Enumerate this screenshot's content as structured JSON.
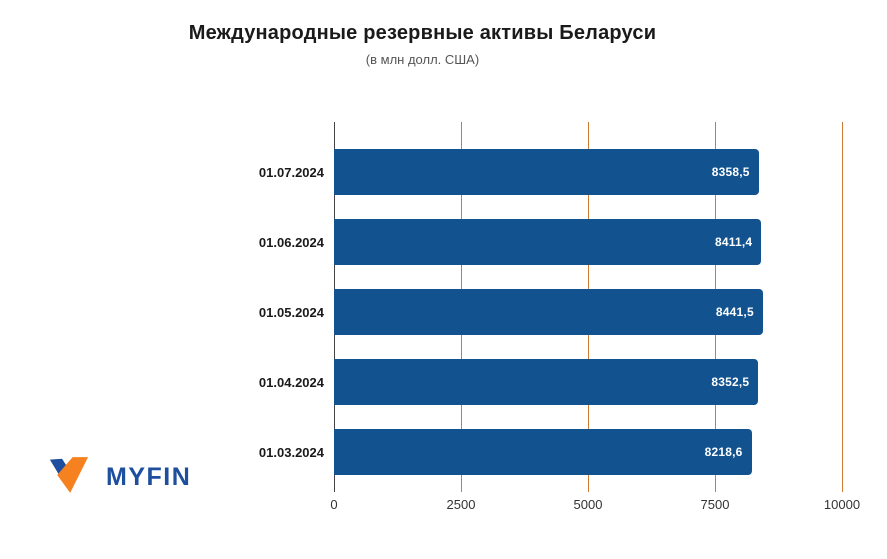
{
  "chart_data": {
    "type": "bar",
    "orientation": "horizontal",
    "title": "Международные резервные активы Беларуси",
    "subtitle": "(в млн долл. США)",
    "categories": [
      "01.07.2024",
      "01.06.2024",
      "01.05.2024",
      "01.04.2024",
      "01.03.2024"
    ],
    "values": [
      8358.5,
      8411.4,
      8441.5,
      8352.5,
      8218.6
    ],
    "value_labels": [
      "8358,5",
      "8411,4",
      "8441,5",
      "8352,5",
      "8218,6"
    ],
    "xlim": [
      0,
      10000
    ],
    "xticks": [
      0,
      2500,
      5000,
      7500,
      10000
    ],
    "xtick_labels": [
      "0",
      "2500",
      "5000",
      "7500",
      "10000"
    ],
    "grid": "vertical-only",
    "legend": "none",
    "bar_color": "#11528F",
    "grid_color": "#CF7C33",
    "axis_line_color": "#444444",
    "value_label_color": "#FFFFFF"
  },
  "branding": {
    "logo_text": "MYFIN",
    "logo_blue": "#1D4F9E",
    "logo_orange": "#F5821F"
  }
}
